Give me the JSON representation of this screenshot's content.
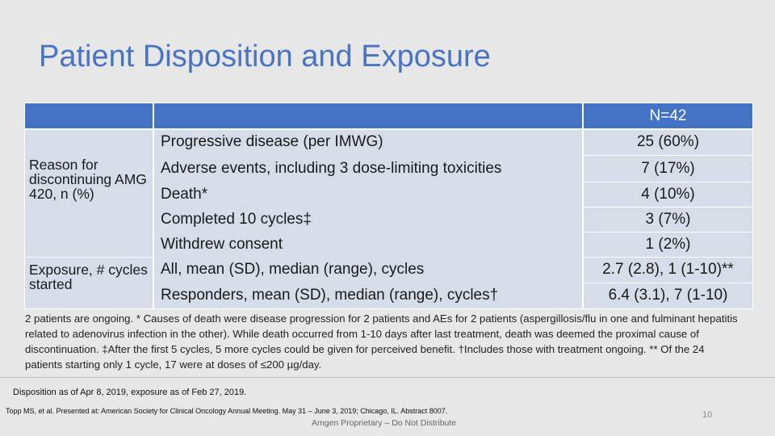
{
  "title": "Patient Disposition and Exposure",
  "table": {
    "header_n": "N=42",
    "reason_label": "Reason for discontinuing AMG 420, n (%)",
    "exposure_label": "Exposure, # cycles started",
    "rows": [
      {
        "label": "Progressive disease (per IMWG)",
        "value": "25 (60%)"
      },
      {
        "label": "Adverse events, including 3 dose-limiting toxicities",
        "value": "7 (17%)"
      },
      {
        "label": "Death*",
        "value": "4 (10%)"
      },
      {
        "label": "Completed 10 cycles‡",
        "value": "3 (7%)"
      },
      {
        "label": "Withdrew consent",
        "value": "1 (2%)"
      },
      {
        "label": "All, mean (SD), median (range), cycles",
        "value": "2.7 (2.8), 1 (1-10)**"
      },
      {
        "label": "Responders, mean (SD), median (range), cycles†",
        "value": "6.4 (3.1), 7 (1-10)"
      }
    ]
  },
  "footnote": "2 patients are ongoing. * Causes of death were disease progression for 2 patients and AEs for 2 patients (aspergillosis/flu in one and fulminant hepatitis related to adenovirus infection in the other).  While death occurred from 1-10 days after last treatment, death was deemed the proximal cause of discontinuation. ‡After the first 5 cycles, 5 more cycles could be given for perceived benefit. †Includes those with treatment ongoing.  ** Of the 24 patients starting only 1 cycle, 17 were at doses of ≤200 µg/day.",
  "disposition_note": "Disposition as of Apr 8, 2019, exposure as of Feb 27, 2019.",
  "citation": "Topp MS, et al. Presented at: American Society for Clinical Oncology Annual Meeting. May 31 – June 3, 2019; Chicago, IL. Abstract 8007.",
  "confidential": "Amgen Proprietary – Do Not Distribute",
  "page_number": "10",
  "colors": {
    "title": "#4a73c4",
    "header_fill": "#4472c4",
    "body_fill": "#d6dce8",
    "background": "#e7e7e7"
  }
}
